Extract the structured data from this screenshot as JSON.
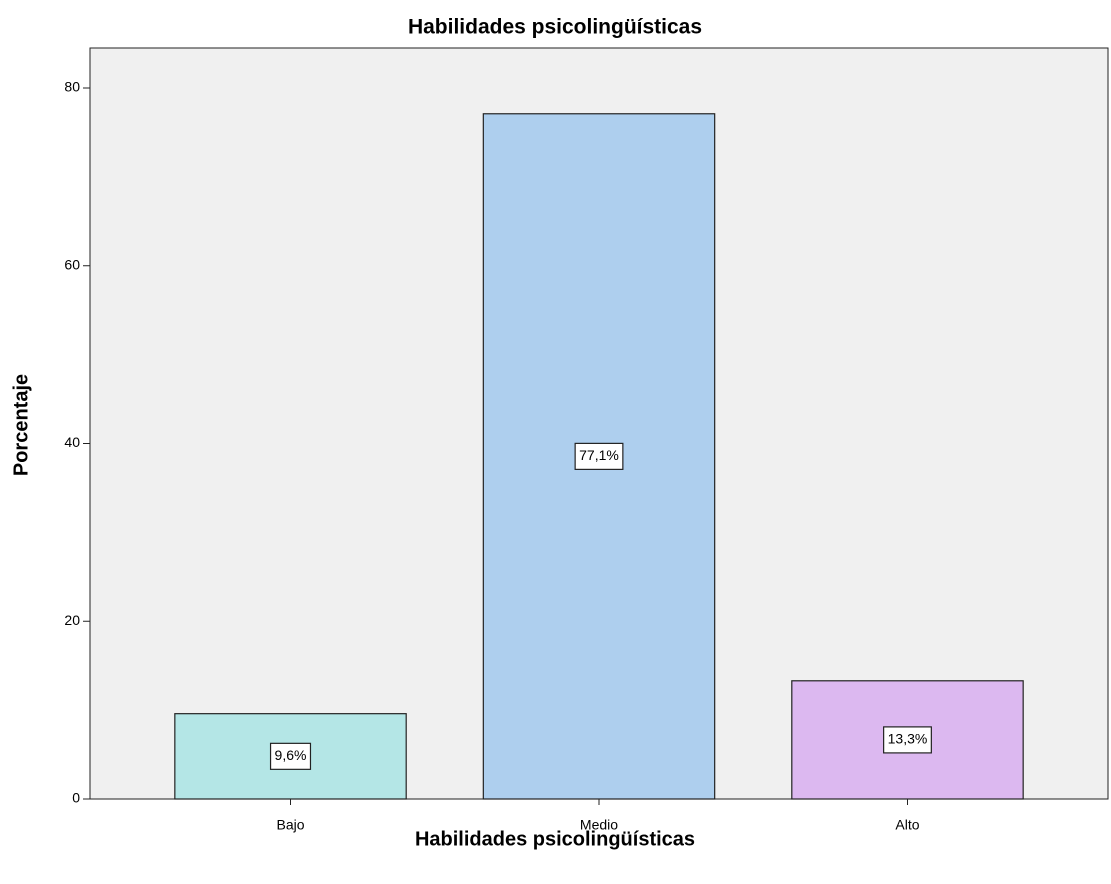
{
  "chart_data": {
    "type": "bar",
    "title": "Habilidades psicolingüísticas",
    "x_label": "Habilidades psicolingüísticas",
    "y_label": "Porcentaje",
    "categories": [
      "Bajo",
      "Medio",
      "Alto"
    ],
    "values": [
      9.6,
      77.1,
      13.3
    ],
    "value_labels": [
      "9,6%",
      "77,1%",
      "13,3%"
    ],
    "colors": [
      "#b4e6e6",
      "#aecfee",
      "#dcb8f0"
    ],
    "ylim": [
      0,
      84.5
    ],
    "yticks": [
      0,
      20,
      40,
      60,
      80
    ],
    "grid": false
  }
}
